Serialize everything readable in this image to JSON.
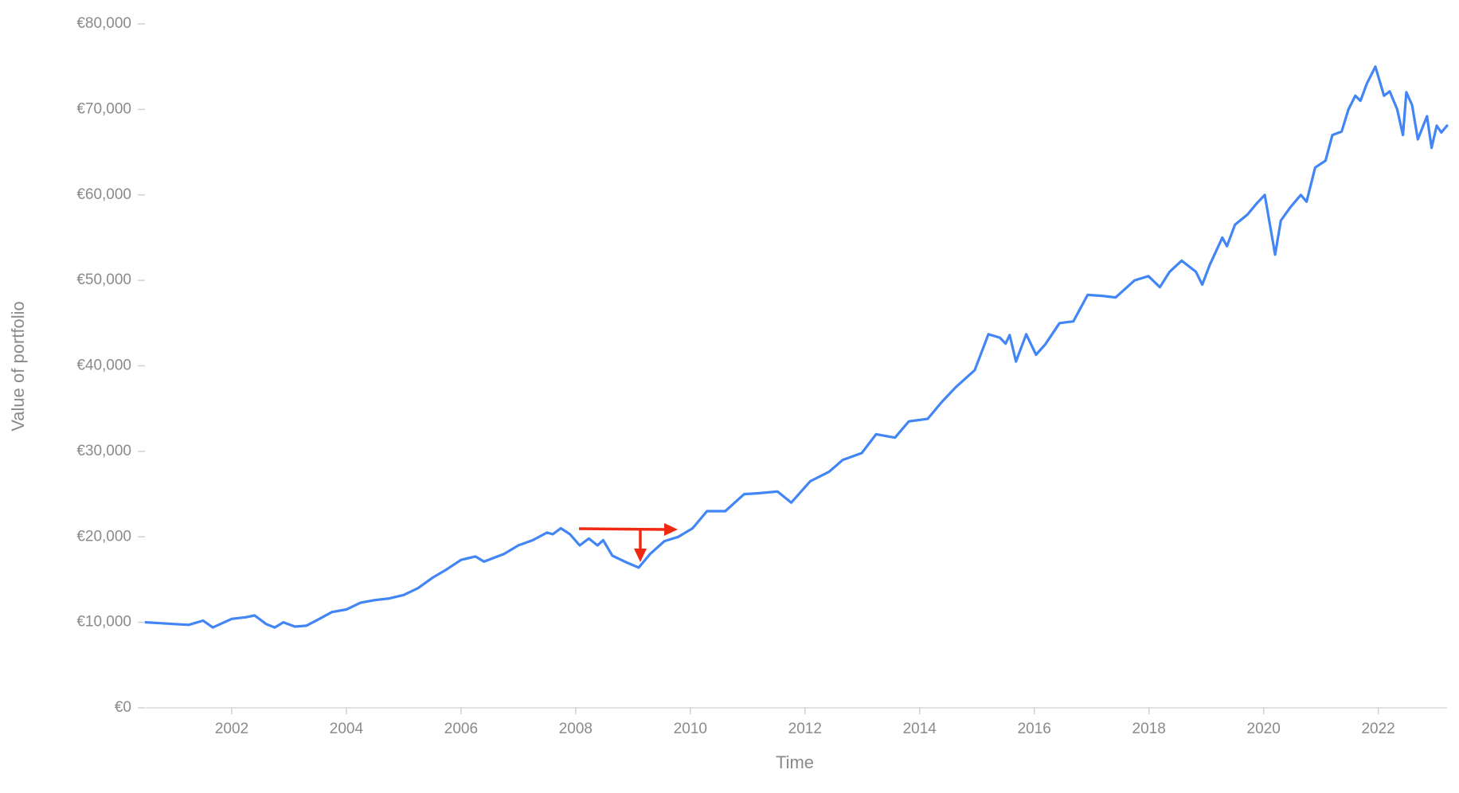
{
  "chart_data": {
    "type": "line",
    "x_label": "Time",
    "y_label": "Value of portfolio",
    "xlim": [
      2000.5,
      2023.2
    ],
    "ylim": [
      0,
      80000
    ],
    "xticks": [
      2002,
      2004,
      2006,
      2008,
      2010,
      2012,
      2014,
      2016,
      2018,
      2020,
      2022
    ],
    "yticks": [
      {
        "value": 0,
        "label": "€0"
      },
      {
        "value": 10000,
        "label": "€10,000"
      },
      {
        "value": 20000,
        "label": "€20,000"
      },
      {
        "value": 30000,
        "label": "€30,000"
      },
      {
        "value": 40000,
        "label": "€40,000"
      },
      {
        "value": 50000,
        "label": "€50,000"
      },
      {
        "value": 60000,
        "label": "€60,000"
      },
      {
        "value": 70000,
        "label": "€70,000"
      },
      {
        "value": 80000,
        "label": "€80,000"
      }
    ],
    "series": [
      {
        "color": "#4285f4",
        "x": [
          2000.5,
          2000.75,
          2001,
          2001.25,
          2001.5,
          2001.67,
          2002,
          2002.25,
          2002.4,
          2002.6,
          2002.75,
          2002.9,
          2003.1,
          2003.3,
          2003.5,
          2003.75,
          2004,
          2004.25,
          2004.5,
          2004.75,
          2005,
          2005.25,
          2005.5,
          2005.75,
          2006,
          2006.25,
          2006.4,
          2006.75,
          2007,
          2007.25,
          2007.5,
          2007.6,
          2007.74,
          2007.9,
          2008.07,
          2008.23,
          2008.38,
          2008.48,
          2008.64,
          2008.89,
          2009.1,
          2009.3,
          2009.55,
          2009.79,
          2010.04,
          2010.29,
          2010.61,
          2010.94,
          2011.19,
          2011.52,
          2011.76,
          2012.09,
          2012.42,
          2012.66,
          2012.99,
          2013.24,
          2013.57,
          2013.81,
          2014.14,
          2014.39,
          2014.63,
          2014.96,
          2015.2,
          2015.4,
          2015.5,
          2015.57,
          2015.68,
          2015.86,
          2016.03,
          2016.19,
          2016.44,
          2016.68,
          2016.93,
          2017.17,
          2017.42,
          2017.75,
          2017.99,
          2018.19,
          2018.36,
          2018.57,
          2018.82,
          2018.93,
          2019.06,
          2019.28,
          2019.36,
          2019.5,
          2019.72,
          2019.88,
          2020.02,
          2020.2,
          2020.3,
          2020.46,
          2020.65,
          2020.75,
          2020.9,
          2021.08,
          2021.2,
          2021.36,
          2021.48,
          2021.6,
          2021.69,
          2021.8,
          2021.95,
          2022.1,
          2022.2,
          2022.33,
          2022.43,
          2022.49,
          2022.59,
          2022.69,
          2022.85,
          2022.93,
          2023.02,
          2023.1,
          2023.2
        ],
        "values": [
          10000,
          9900,
          9800,
          9700,
          10200,
          9400,
          10400,
          10600,
          10800,
          9800,
          9400,
          10000,
          9500,
          9600,
          10300,
          11200,
          11500,
          12300,
          12600,
          12800,
          13200,
          14000,
          15200,
          16200,
          17300,
          17700,
          17100,
          18000,
          19000,
          19600,
          20500,
          20300,
          21000,
          20300,
          19000,
          19800,
          19000,
          19600,
          17800,
          17000,
          16400,
          18000,
          19500,
          20000,
          21000,
          23000,
          23000,
          25000,
          25100,
          25300,
          24000,
          26500,
          27600,
          29000,
          29800,
          32000,
          31600,
          33500,
          33800,
          35800,
          37500,
          39500,
          43700,
          43300,
          42600,
          43600,
          40500,
          43700,
          41300,
          42500,
          45000,
          45200,
          48300,
          48200,
          48000,
          50000,
          50500,
          49200,
          51000,
          52300,
          51000,
          49500,
          51800,
          55000,
          54000,
          56500,
          57700,
          59000,
          60000,
          53000,
          57000,
          58500,
          60000,
          59200,
          63200,
          64000,
          67000,
          67400,
          70000,
          71600,
          71000,
          73000,
          75000,
          71600,
          72100,
          70000,
          67000,
          72000,
          70500,
          66500,
          69200,
          65500,
          68100,
          67300,
          68100
        ]
      }
    ]
  }
}
